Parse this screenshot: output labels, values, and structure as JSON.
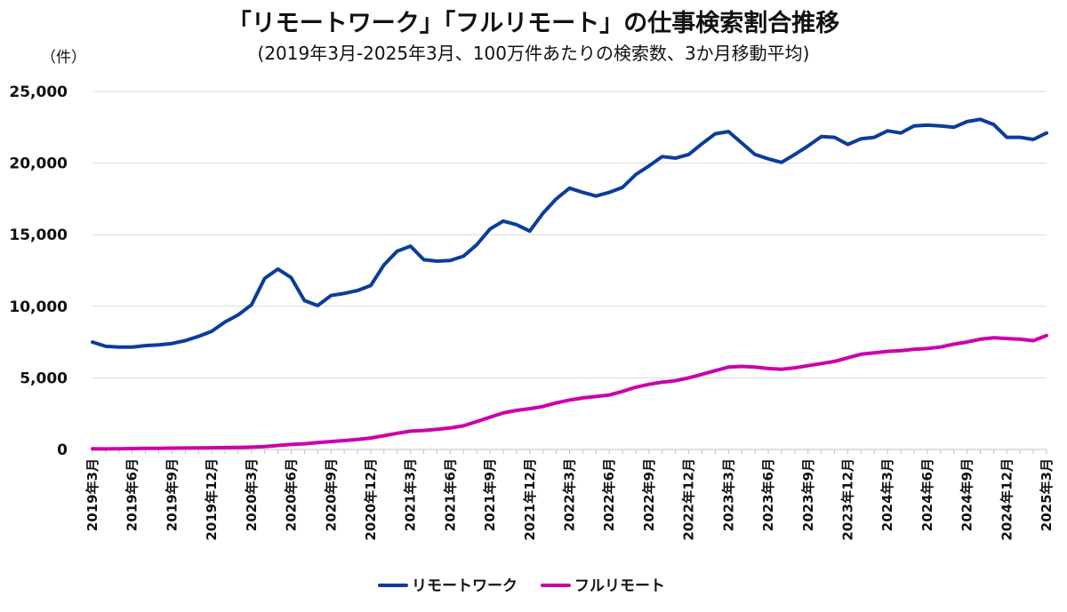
{
  "chart_data": {
    "type": "line",
    "title": "「リモートワーク」「フルリモート」の仕事検索割合推移",
    "subtitle": "(2019年3月-2025年3月、100万件あたりの検索数、3か月移動平均)",
    "ylabel": "（件）",
    "xlabel": "",
    "ylim": [
      0,
      25000
    ],
    "yticks": [
      "0",
      "5,000",
      "10,000",
      "15,000",
      "20,000",
      "25,000"
    ],
    "ytick_values": [
      0,
      5000,
      10000,
      15000,
      20000,
      25000
    ],
    "grid": "horizontal",
    "legend_position": "bottom",
    "x": [
      "2019年3月",
      "2019年4月",
      "2019年5月",
      "2019年6月",
      "2019年7月",
      "2019年8月",
      "2019年9月",
      "2019年10月",
      "2019年11月",
      "2019年12月",
      "2020年1月",
      "2020年2月",
      "2020年3月",
      "2020年4月",
      "2020年5月",
      "2020年6月",
      "2020年7月",
      "2020年8月",
      "2020年9月",
      "2020年10月",
      "2020年11月",
      "2020年12月",
      "2021年1月",
      "2021年2月",
      "2021年3月",
      "2021年4月",
      "2021年5月",
      "2021年6月",
      "2021年7月",
      "2021年8月",
      "2021年9月",
      "2021年10月",
      "2021年11月",
      "2021年12月",
      "2022年1月",
      "2022年2月",
      "2022年3月",
      "2022年4月",
      "2022年5月",
      "2022年6月",
      "2022年7月",
      "2022年8月",
      "2022年9月",
      "2022年10月",
      "2022年11月",
      "2022年12月",
      "2023年1月",
      "2023年2月",
      "2023年3月",
      "2023年4月",
      "2023年5月",
      "2023年6月",
      "2023年7月",
      "2023年8月",
      "2023年9月",
      "2023年10月",
      "2023年11月",
      "2023年12月",
      "2024年1月",
      "2024年2月",
      "2024年3月",
      "2024年4月",
      "2024年5月",
      "2024年6月",
      "2024年7月",
      "2024年8月",
      "2024年9月",
      "2024年10月",
      "2024年11月",
      "2024年12月",
      "2025年1月",
      "2025年2月",
      "2025年3月"
    ],
    "xtick_labels": [
      "2019年3月",
      "2019年6月",
      "2019年9月",
      "2019年12月",
      "2020年3月",
      "2020年6月",
      "2020年9月",
      "2020年12月",
      "2021年3月",
      "2021年6月",
      "2021年9月",
      "2021年12月",
      "2022年3月",
      "2022年6月",
      "2022年9月",
      "2022年12月",
      "2023年3月",
      "2023年6月",
      "2023年9月",
      "2023年12月",
      "2024年3月",
      "2024年6月",
      "2024年9月",
      "2024年12月",
      "2025年3月"
    ],
    "series": [
      {
        "name": "リモートワーク",
        "color": "#0b3d9a",
        "values": [
          7500,
          7200,
          7150,
          7150,
          7250,
          7300,
          7400,
          7600,
          7900,
          8250,
          8900,
          9400,
          10100,
          11950,
          12600,
          12000,
          10400,
          10050,
          10750,
          10900,
          11100,
          11450,
          12900,
          13850,
          14200,
          13250,
          13150,
          13200,
          13500,
          14300,
          15400,
          15950,
          15700,
          15250,
          16500,
          17500,
          18250,
          17950,
          17700,
          17950,
          18300,
          19200,
          19800,
          20450,
          20350,
          20600,
          21350,
          22050,
          22200,
          21400,
          20600,
          20300,
          20050,
          20600,
          21200,
          21850,
          21800,
          21300,
          21700,
          21800,
          22250,
          22100,
          22600,
          22650,
          22600,
          22500,
          22900,
          23050,
          22700,
          21800,
          21800,
          21650,
          22100
        ]
      },
      {
        "name": "フルリモート",
        "color": "#cc00aa",
        "values": [
          50,
          40,
          50,
          60,
          80,
          80,
          90,
          100,
          110,
          120,
          130,
          140,
          160,
          200,
          280,
          350,
          400,
          480,
          550,
          620,
          700,
          800,
          960,
          1130,
          1280,
          1330,
          1400,
          1500,
          1650,
          1950,
          2250,
          2550,
          2730,
          2850,
          3000,
          3250,
          3450,
          3600,
          3700,
          3800,
          4050,
          4350,
          4550,
          4700,
          4800,
          5000,
          5250,
          5500,
          5750,
          5800,
          5750,
          5650,
          5600,
          5700,
          5850,
          6000,
          6150,
          6400,
          6650,
          6750,
          6850,
          6900,
          7000,
          7050,
          7150,
          7350,
          7500,
          7700,
          7800,
          7750,
          7700,
          7600,
          7950
        ]
      }
    ]
  }
}
